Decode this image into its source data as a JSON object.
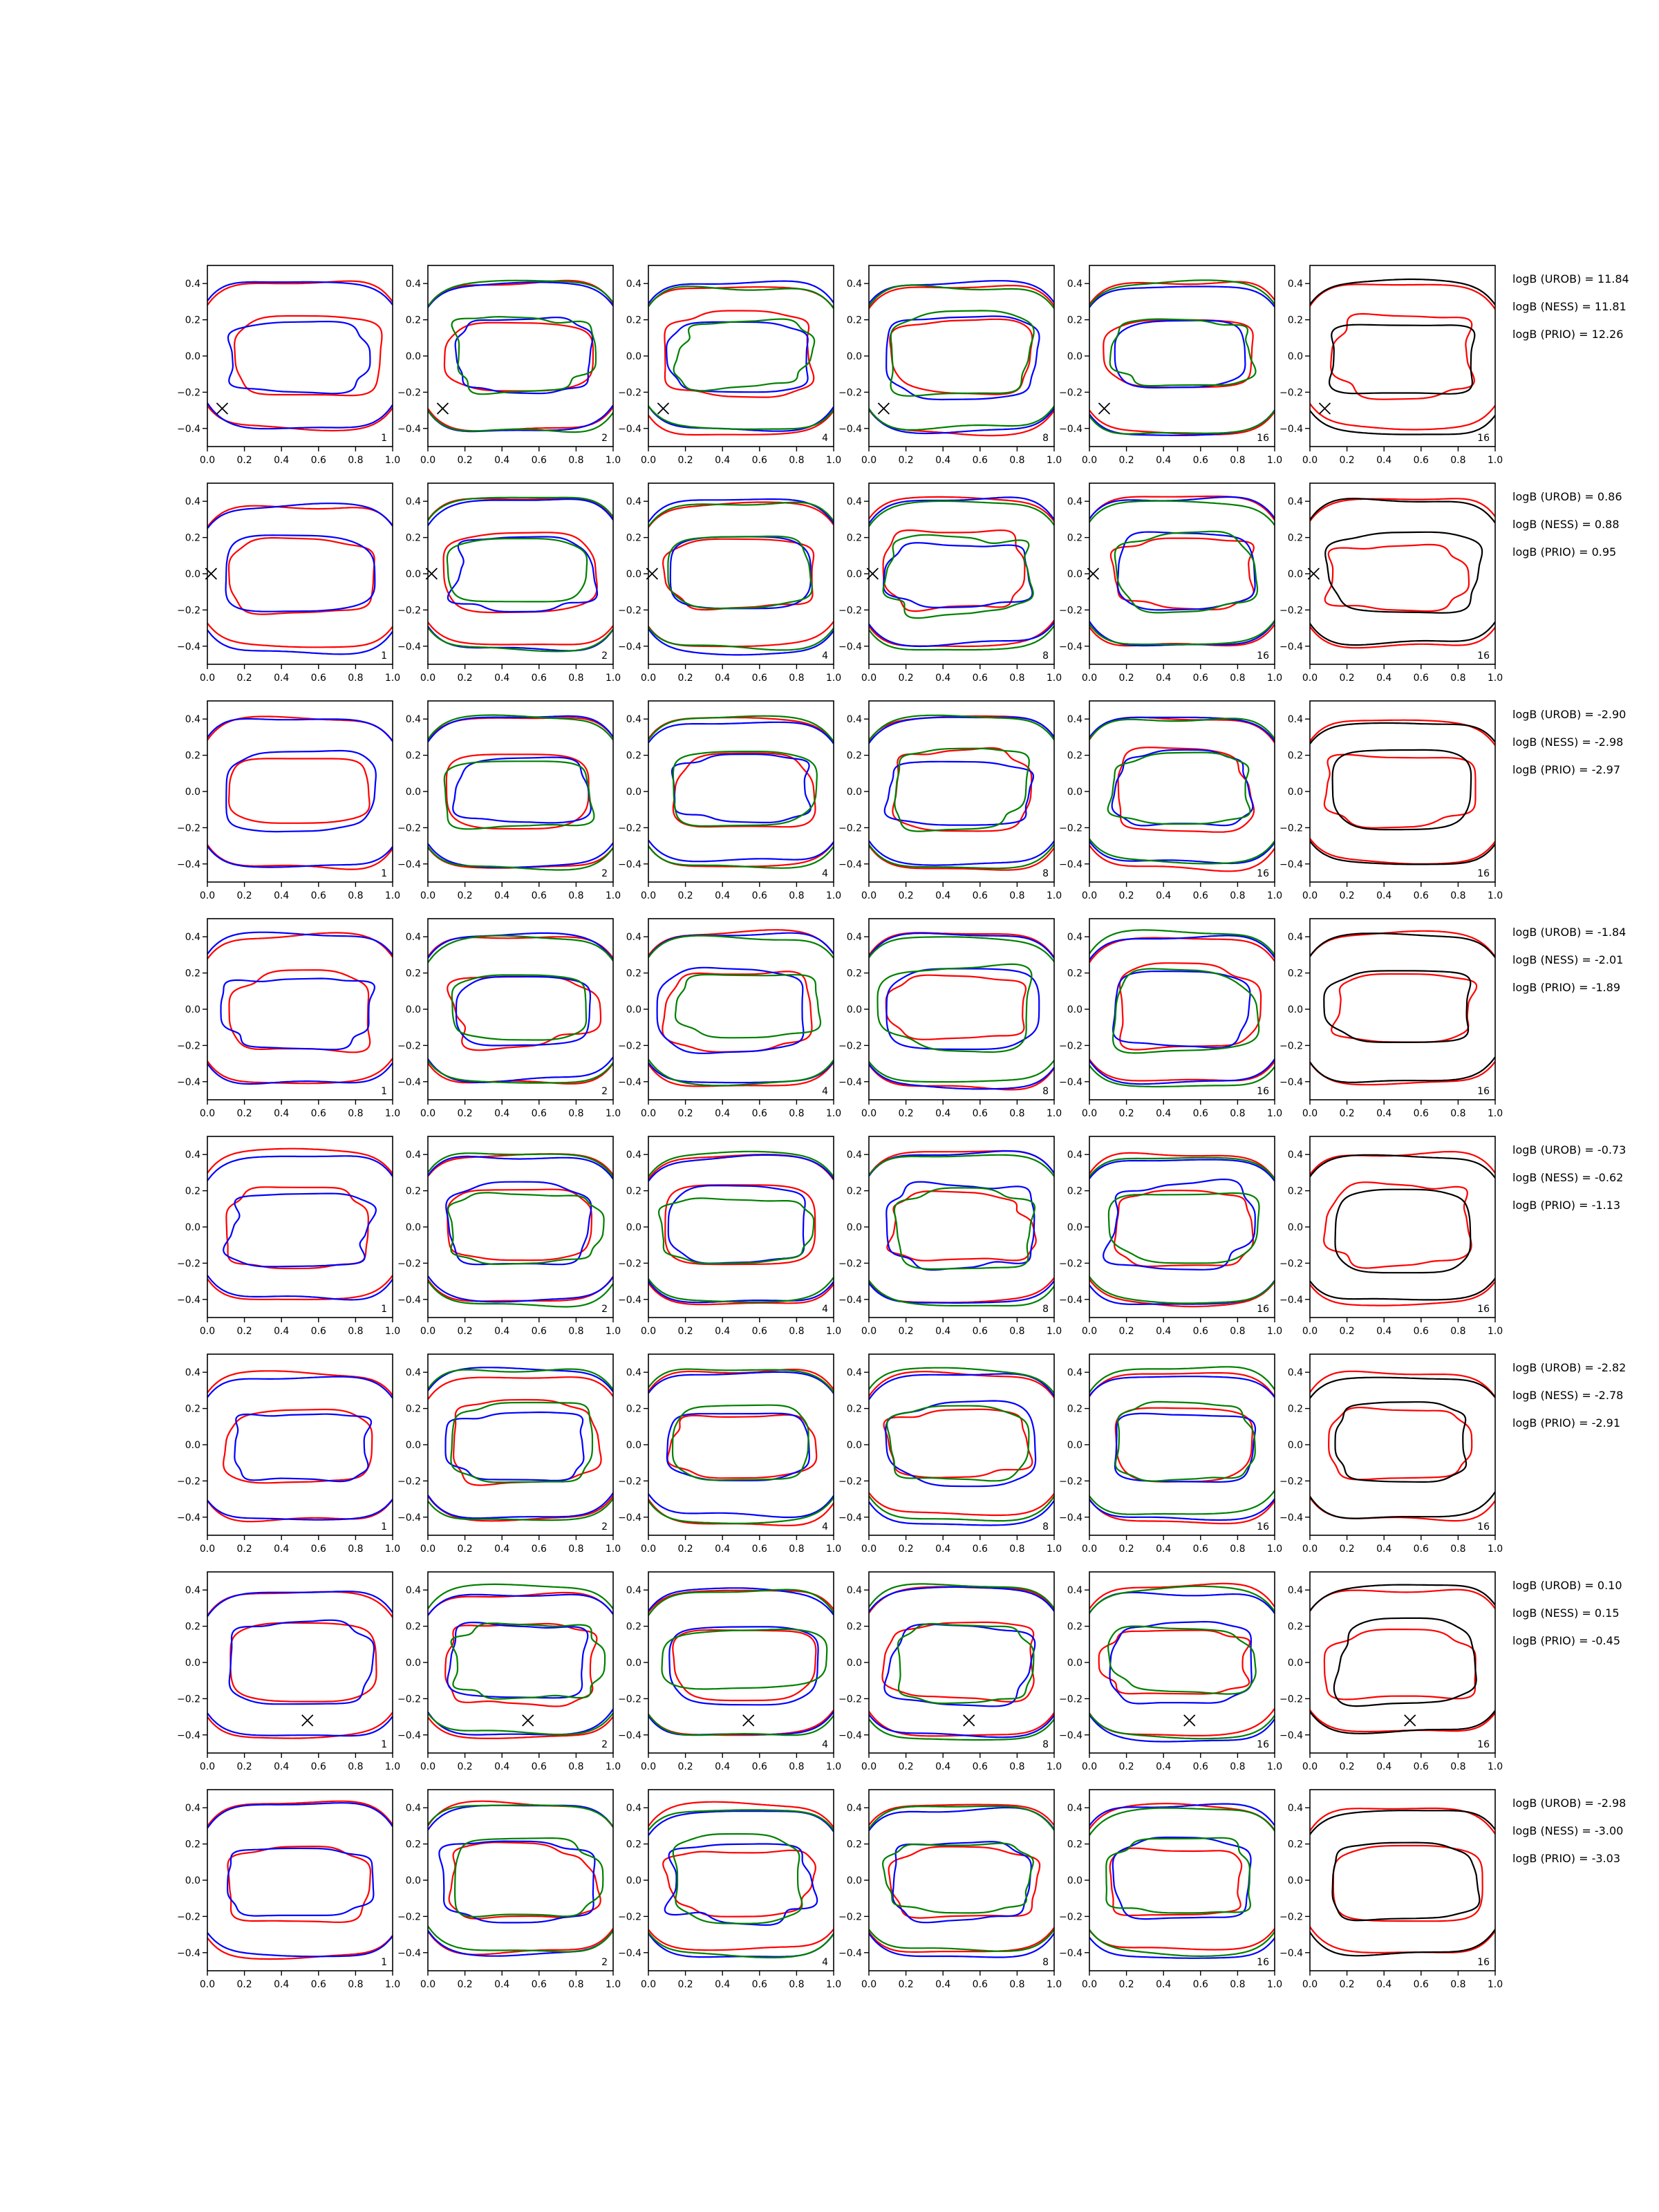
{
  "figure": {
    "panel_columns": [
      "1",
      "2",
      "4",
      "8",
      "16",
      "16"
    ],
    "x_ticks": [
      0.0,
      0.2,
      0.4,
      0.6,
      0.8,
      1.0
    ],
    "y_ticks": [
      -0.4,
      -0.2,
      0.0,
      0.2,
      0.4
    ],
    "colors": {
      "red": "#ff0000",
      "blue": "#0000ff",
      "green": "#008000",
      "black": "#000000"
    }
  },
  "chart_data": {
    "type": "line",
    "layout": "8 rows x 6 panels of closed contour plots",
    "xlim": [
      0.0,
      1.0
    ],
    "ylim": [
      -0.5,
      0.5
    ],
    "grid": false,
    "note_colors": "red, blue, green and black contour lines",
    "rows": [
      {
        "marker": [
          0.08,
          -0.29
        ],
        "stats": [
          "logB (UROB) = 11.84",
          "logB (NESS) = 11.81",
          "logB (PRIO) = 12.26"
        ]
      },
      {
        "marker": [
          0.02,
          0.0
        ],
        "stats": [
          "logB (UROB) = 0.86",
          "logB (NESS) = 0.88",
          "logB (PRIO) = 0.95"
        ]
      },
      {
        "marker": null,
        "stats": [
          "logB (UROB) = -2.90",
          "logB (NESS) = -2.98",
          "logB (PRIO) = -2.97"
        ]
      },
      {
        "marker": null,
        "stats": [
          "logB (UROB) = -1.84",
          "logB (NESS) = -2.01",
          "logB (PRIO) = -1.89"
        ]
      },
      {
        "marker": null,
        "stats": [
          "logB (UROB) = -0.73",
          "logB (NESS) = -0.62",
          "logB (PRIO) = -1.13"
        ]
      },
      {
        "marker": null,
        "stats": [
          "logB (UROB) = -2.82",
          "logB (NESS) = -2.78",
          "logB (PRIO) = -2.91"
        ]
      },
      {
        "marker": [
          0.54,
          -0.32
        ],
        "stats": [
          "logB (UROB) = 0.10",
          "logB (NESS) = 0.15",
          "logB (PRIO) = -0.45"
        ]
      },
      {
        "marker": null,
        "stats": [
          "logB (UROB) = -2.98",
          "logB (NESS) = -3.00",
          "logB (PRIO) = -3.03"
        ]
      }
    ]
  }
}
